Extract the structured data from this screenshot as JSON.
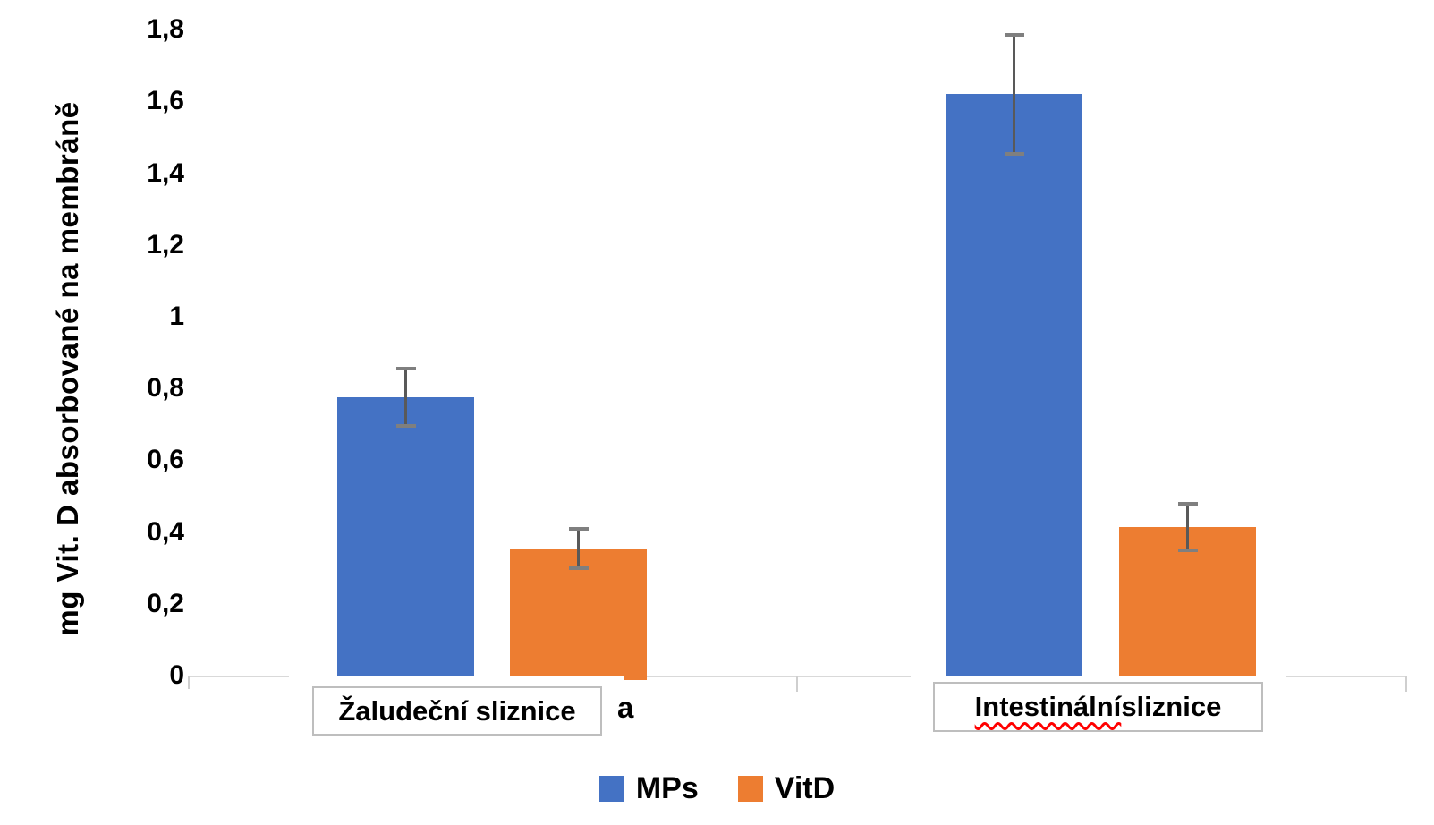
{
  "chart_data": {
    "type": "bar",
    "title": "",
    "ylabel": "mg Vit. D absorbované na membráně",
    "xlabel": "",
    "categories": [
      "Žaludeční sliznice",
      "Intestinální sliznice"
    ],
    "category_spellcheck_wavy": [
      "",
      "Intestinální"
    ],
    "series": [
      {
        "name": "MPs",
        "color": "#4472C4",
        "values": [
          0.775,
          1.62
        ],
        "error_bars": [
          0.08,
          0.165
        ]
      },
      {
        "name": "VitD",
        "color": "#ED7D31",
        "values": [
          0.355,
          0.415
        ],
        "error_bars": [
          0.055,
          0.065
        ]
      }
    ],
    "ylim": [
      0,
      1.8
    ],
    "yticks": [
      {
        "v": 0,
        "label": "0"
      },
      {
        "v": 0.2,
        "label": "0,2"
      },
      {
        "v": 0.4,
        "label": "0,4"
      },
      {
        "v": 0.6,
        "label": "0,6"
      },
      {
        "v": 0.8,
        "label": "0,8"
      },
      {
        "v": 1,
        "label": "1"
      },
      {
        "v": 1.2,
        "label": "1,2"
      },
      {
        "v": 1.4,
        "label": "1,4"
      },
      {
        "v": 1.6,
        "label": "1,6"
      },
      {
        "v": 1.8,
        "label": "1,8"
      }
    ],
    "grid": false,
    "legend_position": "bottom",
    "annotation_label": "a",
    "error_bar_color": "#595959",
    "axis_line_color": "#D9D9D9",
    "spellcheck_underline_color": "#FF0000"
  },
  "legend": {
    "items": [
      {
        "label": "MPs",
        "color": "#4472C4"
      },
      {
        "label": "VitD",
        "color": "#ED7D31"
      }
    ]
  },
  "annotation": {
    "label": "a"
  }
}
